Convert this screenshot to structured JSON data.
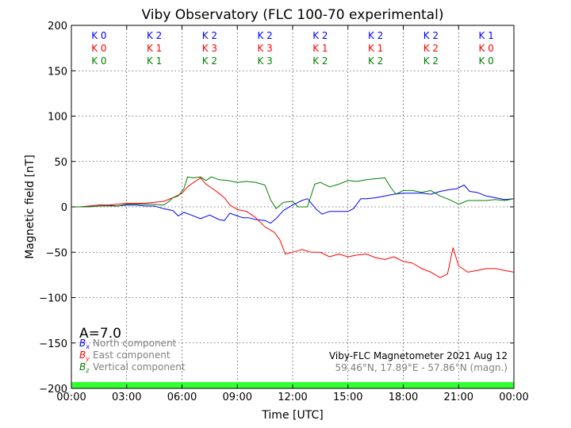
{
  "chart_data": {
    "type": "line",
    "title": "Viby Observatory (FLC 100-70 experimental)",
    "xlabel": "Time [UTC]",
    "ylabel": "Magnetic field [nT]",
    "x_ticks": [
      "00:00",
      "03:00",
      "06:00",
      "09:00",
      "12:00",
      "15:00",
      "18:00",
      "21:00",
      "00:00"
    ],
    "y_ticks": [
      200,
      150,
      100,
      50,
      0,
      -50,
      -100,
      -150,
      -200
    ],
    "xlim_hours": [
      0,
      24
    ],
    "ylim": [
      -200,
      200
    ],
    "grid": true,
    "legend_placement": "bottom-left",
    "series": [
      {
        "name": "North component",
        "symbol": "B",
        "sub": "x",
        "color": "#0000ff",
        "points": [
          [
            0,
            0
          ],
          [
            0.5,
            0
          ],
          [
            1,
            1
          ],
          [
            1.5,
            2
          ],
          [
            2,
            2
          ],
          [
            2.5,
            1
          ],
          [
            3,
            2
          ],
          [
            3.5,
            2
          ],
          [
            4,
            1
          ],
          [
            4.5,
            1
          ],
          [
            5,
            -2
          ],
          [
            5.5,
            -4
          ],
          [
            5.8,
            -10
          ],
          [
            6.1,
            -6
          ],
          [
            6.5,
            -9
          ],
          [
            7,
            -13
          ],
          [
            7.5,
            -9
          ],
          [
            8,
            -14
          ],
          [
            8.3,
            -15
          ],
          [
            8.6,
            -7
          ],
          [
            9,
            -10
          ],
          [
            9.3,
            -12
          ],
          [
            9.6,
            -12
          ],
          [
            10,
            -14
          ],
          [
            10.5,
            -15
          ],
          [
            10.8,
            -18
          ],
          [
            11.1,
            -13
          ],
          [
            11.5,
            -4
          ],
          [
            12,
            2
          ],
          [
            12.5,
            7
          ],
          [
            12.8,
            9
          ],
          [
            13.3,
            -3
          ],
          [
            13.6,
            -8
          ],
          [
            14,
            -5
          ],
          [
            14.6,
            -5
          ],
          [
            15,
            -5
          ],
          [
            15.3,
            -2
          ],
          [
            15.7,
            9
          ],
          [
            16,
            9
          ],
          [
            16.5,
            10
          ],
          [
            17,
            12
          ],
          [
            17.5,
            14
          ],
          [
            18,
            15
          ],
          [
            18.5,
            15
          ],
          [
            19,
            15
          ],
          [
            19.5,
            14
          ],
          [
            20,
            17
          ],
          [
            20.5,
            19
          ],
          [
            20.9,
            20
          ],
          [
            21.3,
            24
          ],
          [
            21.6,
            17
          ],
          [
            22,
            16
          ],
          [
            22.5,
            12
          ],
          [
            23,
            10
          ],
          [
            23.5,
            8
          ],
          [
            24,
            9
          ]
        ]
      },
      {
        "name": "East component",
        "symbol": "B",
        "sub": "y",
        "color": "#ff0000",
        "points": [
          [
            0,
            0
          ],
          [
            0.5,
            0
          ],
          [
            1,
            1
          ],
          [
            1.5,
            2
          ],
          [
            2,
            2
          ],
          [
            2.5,
            3
          ],
          [
            3,
            4
          ],
          [
            3.5,
            4
          ],
          [
            4,
            4
          ],
          [
            4.5,
            5
          ],
          [
            5,
            6
          ],
          [
            5.5,
            10
          ],
          [
            6,
            15
          ],
          [
            6.3,
            22
          ],
          [
            6.7,
            28
          ],
          [
            7,
            32
          ],
          [
            7.3,
            25
          ],
          [
            7.6,
            21
          ],
          [
            8,
            15
          ],
          [
            8.3,
            10
          ],
          [
            8.6,
            2
          ],
          [
            9,
            -3
          ],
          [
            9.5,
            -5
          ],
          [
            10,
            -12
          ],
          [
            10.5,
            -22
          ],
          [
            11,
            -28
          ],
          [
            11.3,
            -36
          ],
          [
            11.6,
            -52
          ],
          [
            12,
            -50
          ],
          [
            12.5,
            -47
          ],
          [
            13,
            -50
          ],
          [
            13.5,
            -50
          ],
          [
            14,
            -55
          ],
          [
            14.5,
            -52
          ],
          [
            15,
            -55
          ],
          [
            15.5,
            -53
          ],
          [
            16,
            -52
          ],
          [
            16.5,
            -56
          ],
          [
            17,
            -58
          ],
          [
            17.5,
            -55
          ],
          [
            18,
            -60
          ],
          [
            18.5,
            -62
          ],
          [
            19,
            -68
          ],
          [
            19.5,
            -72
          ],
          [
            20,
            -78
          ],
          [
            20.4,
            -74
          ],
          [
            20.7,
            -45
          ],
          [
            21,
            -65
          ],
          [
            21.5,
            -72
          ],
          [
            22,
            -70
          ],
          [
            22.5,
            -68
          ],
          [
            23,
            -68
          ],
          [
            23.5,
            -70
          ],
          [
            24,
            -72
          ]
        ]
      },
      {
        "name": "Vertical component",
        "symbol": "B",
        "sub": "z",
        "color": "#008000",
        "points": [
          [
            0,
            0
          ],
          [
            0.5,
            0
          ],
          [
            1,
            0
          ],
          [
            1.5,
            1
          ],
          [
            2,
            1
          ],
          [
            2.5,
            1
          ],
          [
            3,
            3
          ],
          [
            3.5,
            3
          ],
          [
            4,
            3
          ],
          [
            4.5,
            3
          ],
          [
            5,
            2
          ],
          [
            5.3,
            6
          ],
          [
            5.5,
            10
          ],
          [
            5.8,
            12
          ],
          [
            6.1,
            20
          ],
          [
            6.3,
            33
          ],
          [
            6.6,
            32
          ],
          [
            7,
            33
          ],
          [
            7.3,
            29
          ],
          [
            7.6,
            33
          ],
          [
            8,
            30
          ],
          [
            8.5,
            29
          ],
          [
            9,
            27
          ],
          [
            9.5,
            28
          ],
          [
            10,
            27
          ],
          [
            10.5,
            24
          ],
          [
            10.8,
            8
          ],
          [
            11.1,
            -2
          ],
          [
            11.5,
            5
          ],
          [
            12,
            6
          ],
          [
            12.3,
            0
          ],
          [
            12.8,
            0
          ],
          [
            13.2,
            25
          ],
          [
            13.5,
            27
          ],
          [
            14,
            22
          ],
          [
            14.5,
            25
          ],
          [
            15,
            29
          ],
          [
            15.5,
            28
          ],
          [
            16,
            30
          ],
          [
            16.5,
            31
          ],
          [
            17,
            32
          ],
          [
            17.3,
            22
          ],
          [
            17.6,
            14
          ],
          [
            18,
            18
          ],
          [
            18.5,
            18
          ],
          [
            19,
            16
          ],
          [
            19.5,
            18
          ],
          [
            20,
            12
          ],
          [
            20.5,
            8
          ],
          [
            21,
            3
          ],
          [
            21.5,
            7
          ],
          [
            22,
            7
          ],
          [
            22.5,
            7
          ],
          [
            23,
            8
          ],
          [
            23.5,
            7
          ],
          [
            24,
            9
          ]
        ]
      }
    ],
    "k_index_columns": [
      {
        "x": 1.5,
        "x_label": "K 0",
        "y_label": "K 0",
        "z_label": "K 0"
      },
      {
        "x": 4.5,
        "x_label": "K 2",
        "y_label": "K 1",
        "z_label": "K 1"
      },
      {
        "x": 7.5,
        "x_label": "K 2",
        "y_label": "K 3",
        "z_label": "K 2"
      },
      {
        "x": 10.5,
        "x_label": "K 2",
        "y_label": "K 3",
        "z_label": "K 3"
      },
      {
        "x": 13.5,
        "x_label": "K 2",
        "y_label": "K 1",
        "z_label": "K 2"
      },
      {
        "x": 16.5,
        "x_label": "K 2",
        "y_label": "K 1",
        "z_label": "K 2"
      },
      {
        "x": 19.5,
        "x_label": "K 2",
        "y_label": "K 2",
        "z_label": "K 2"
      },
      {
        "x": 22.5,
        "x_label": "K 1",
        "y_label": "K 0",
        "z_label": "K 0"
      }
    ],
    "a_index": "A=7.0",
    "station_text": "Viby-FLC Magnetometer 2021 Aug 12",
    "coords_text": "59.46°N, 17.89°E - 57.86°N (magn.)",
    "status_bar_color": "#33ff33",
    "status_bar_range": [
      -200,
      -193
    ]
  }
}
